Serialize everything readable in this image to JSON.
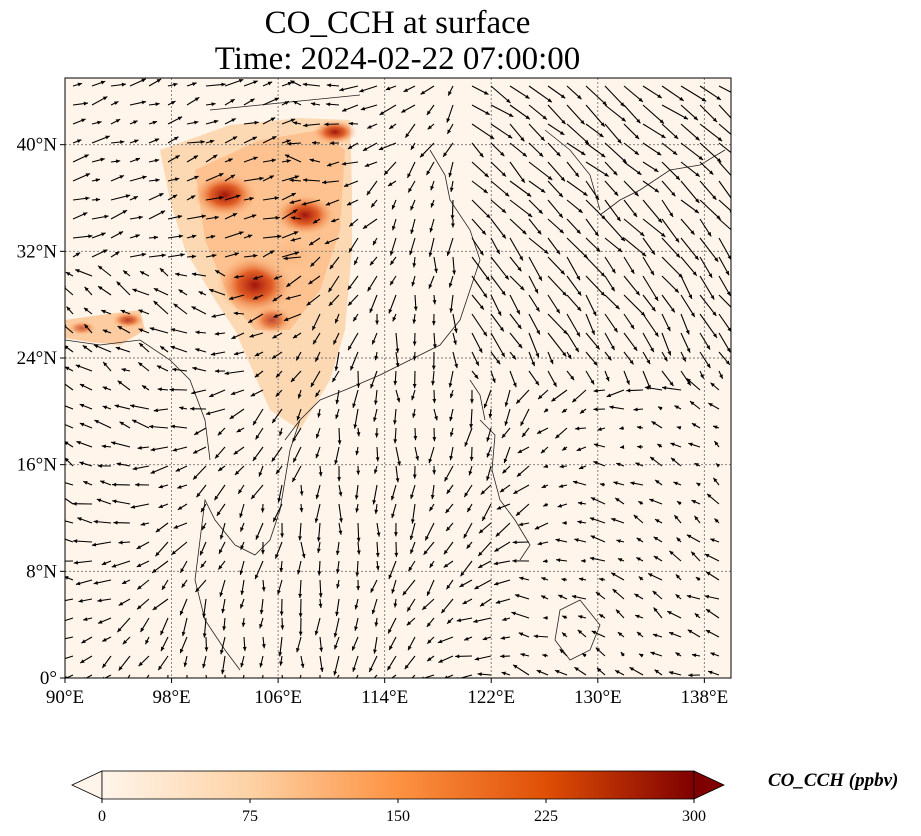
{
  "title": {
    "line1": "CO_CCH at surface",
    "line2": "Time: 2024-02-22 07:00:00"
  },
  "map": {
    "lon_range": [
      90,
      140
    ],
    "lat_range": [
      0,
      45
    ],
    "lon_ticks": [
      {
        "value": 90,
        "label": "90°E"
      },
      {
        "value": 98,
        "label": "98°E"
      },
      {
        "value": 106,
        "label": "106°E"
      },
      {
        "value": 114,
        "label": "114°E"
      },
      {
        "value": 122,
        "label": "122°E"
      },
      {
        "value": 130,
        "label": "130°E"
      },
      {
        "value": 138,
        "label": "138°E"
      }
    ],
    "lat_ticks": [
      {
        "value": 0,
        "label": "0°"
      },
      {
        "value": 8,
        "label": "8°N"
      },
      {
        "value": 16,
        "label": "16°N"
      },
      {
        "value": 24,
        "label": "24°N"
      },
      {
        "value": 32,
        "label": "32°N"
      },
      {
        "value": 40,
        "label": "40°N"
      }
    ],
    "gridlines": true,
    "wind_vectors": true
  },
  "colorbar": {
    "label": "CO_CCH (ppbv)",
    "min": 0,
    "max": 300,
    "ticks": [
      {
        "value": 0,
        "label": "0"
      },
      {
        "value": 75,
        "label": "75"
      },
      {
        "value": 150,
        "label": "150"
      },
      {
        "value": 225,
        "label": "225"
      },
      {
        "value": 300,
        "label": "300"
      }
    ],
    "extend": "both",
    "colors": [
      "#fff5eb",
      "#fdd2a5",
      "#fd9243",
      "#df4f05",
      "#7f0000"
    ]
  }
}
